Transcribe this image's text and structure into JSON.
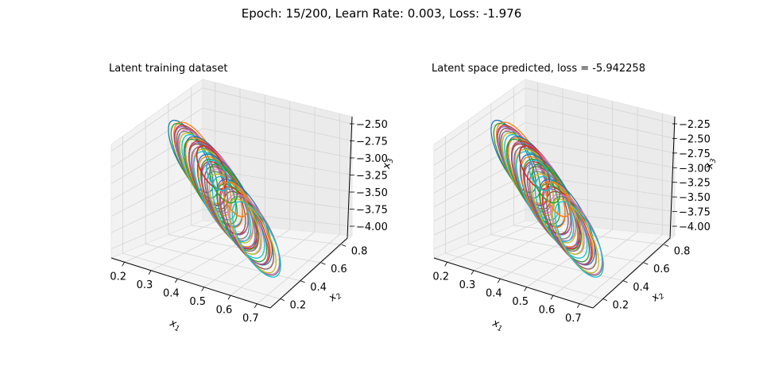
{
  "suptitle": "Epoch: 15/200, Learn Rate: 0.003, Loss: -1.976",
  "chart_data": [
    {
      "type": "line",
      "projection": "3d",
      "title": "Latent training dataset",
      "xlabel": "x_1",
      "ylabel": "x_2",
      "zlabel": "x_3",
      "x_ticks": [
        "0.2",
        "0.3",
        "0.4",
        "0.5",
        "0.6",
        "0.7"
      ],
      "y_ticks": [
        "0.2",
        "0.4",
        "0.6",
        "0.8"
      ],
      "z_ticks": [
        "−2.50",
        "−2.75",
        "−3.00",
        "−3.25",
        "−3.50",
        "−3.75",
        "−4.00"
      ],
      "xlim": [
        0.15,
        0.75
      ],
      "ylim": [
        0.1,
        0.9
      ],
      "zlim": [
        -4.05,
        -2.3
      ],
      "grid": true,
      "series_count": 40,
      "description": "Family of closed elliptical trajectories (one per sample) spread diagonally across the latent cube",
      "colors": [
        "#1f77b4",
        "#ff7f0e",
        "#2ca02c",
        "#d62728",
        "#9467bd",
        "#8c564b",
        "#e377c2",
        "#7f7f7f",
        "#bcbd22",
        "#17becf"
      ]
    },
    {
      "type": "line",
      "projection": "3d",
      "title": "Latent space predicted, loss = -5.942258",
      "xlabel": "x_1",
      "ylabel": "x_2",
      "zlabel": "x_3",
      "x_ticks": [
        "0.2",
        "0.3",
        "0.4",
        "0.5",
        "0.6",
        "0.7"
      ],
      "y_ticks": [
        "0.2",
        "0.4",
        "0.6",
        "0.8"
      ],
      "z_ticks": [
        "−2.25",
        "−2.50",
        "−2.75",
        "−3.00",
        "−3.25",
        "−3.50",
        "−3.75",
        "−4.00"
      ],
      "xlim": [
        0.15,
        0.75
      ],
      "ylim": [
        0.1,
        0.9
      ],
      "zlim": [
        -4.05,
        -2.2
      ],
      "grid": true,
      "series_count": 40,
      "description": "Predicted closed elliptical trajectories closely matching the training dataset",
      "colors": [
        "#1f77b4",
        "#ff7f0e",
        "#2ca02c",
        "#d62728",
        "#9467bd",
        "#8c564b",
        "#e377c2",
        "#7f7f7f",
        "#bcbd22",
        "#17becf"
      ]
    }
  ]
}
